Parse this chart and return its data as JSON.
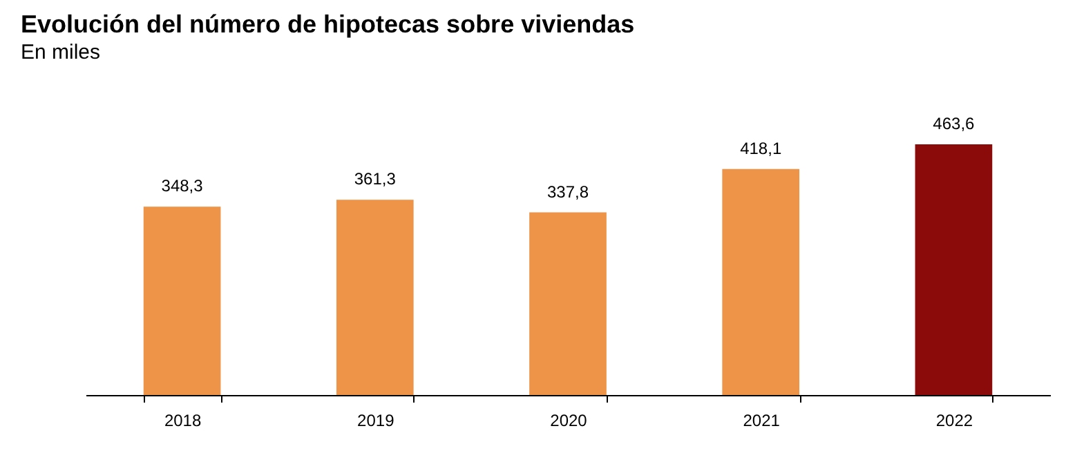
{
  "chart_data": {
    "type": "bar",
    "title": "Evolución del número de hipotecas sobre viviendas",
    "subtitle": "En miles",
    "categories": [
      "2018",
      "2019",
      "2020",
      "2021",
      "2022"
    ],
    "values": [
      348.3,
      361.3,
      337.8,
      418.1,
      463.6
    ],
    "colors": [
      "#ee9449",
      "#ee9449",
      "#ee9449",
      "#ee9449",
      "#8b0b0b"
    ],
    "value_labels": [
      "348,3",
      "361,3",
      "337,8",
      "418,1",
      "463,6"
    ]
  }
}
